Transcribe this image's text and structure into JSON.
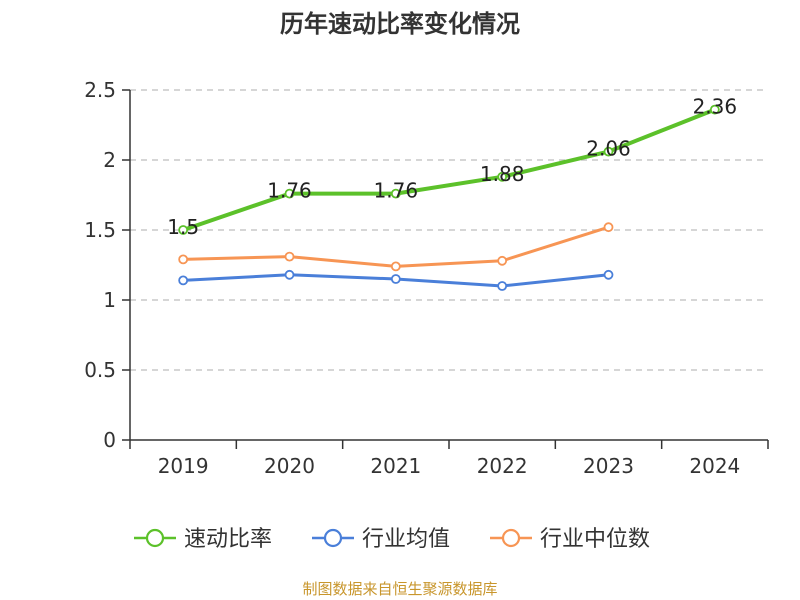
{
  "chart_data": {
    "type": "line",
    "title": "历年速动比率变化情况",
    "categories": [
      "2019",
      "2020",
      "2021",
      "2022",
      "2023",
      "2024"
    ],
    "ylim": [
      0,
      2.5
    ],
    "yticks": [
      "0",
      "0.5",
      "1",
      "1.5",
      "2",
      "2.5"
    ],
    "grid": true,
    "legend_position": "bottom",
    "series": [
      {
        "name": "速动比率",
        "color": "#5cc12a",
        "values": [
          1.5,
          1.76,
          1.76,
          1.88,
          2.06,
          2.36
        ],
        "data_labels": [
          "1.5",
          "1.76",
          "1.76",
          "1.88",
          "2.06",
          "2.36"
        ]
      },
      {
        "name": "行业均值",
        "color": "#4a7fd9",
        "values": [
          1.14,
          1.18,
          1.15,
          1.1,
          1.18,
          null
        ]
      },
      {
        "name": "行业中位数",
        "color": "#f79554",
        "values": [
          1.29,
          1.31,
          1.24,
          1.28,
          1.52,
          null
        ]
      }
    ]
  },
  "source": "制图数据来自恒生聚源数据库"
}
